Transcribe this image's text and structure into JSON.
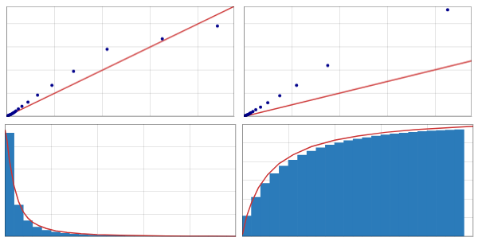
{
  "chart_data": [
    {
      "type": "scatter",
      "series": [
        {
          "type": "line",
          "color": "#cc3333",
          "x": [
            0.0,
            0.95
          ],
          "values": [
            0.0,
            0.95
          ]
        },
        {
          "type": "scatter",
          "color": "#00008B",
          "x": [
            0.0,
            0.002,
            0.004,
            0.006,
            0.008,
            0.01,
            0.012,
            0.015,
            0.018,
            0.022,
            0.026,
            0.03,
            0.035,
            0.04,
            0.05,
            0.065,
            0.09,
            0.13,
            0.19,
            0.28,
            0.42,
            0.65,
            0.88
          ],
          "values": [
            0.0,
            0.002,
            0.004,
            0.006,
            0.008,
            0.01,
            0.012,
            0.015,
            0.018,
            0.022,
            0.027,
            0.033,
            0.04,
            0.048,
            0.065,
            0.088,
            0.125,
            0.185,
            0.27,
            0.39,
            0.58,
            0.67,
            0.78
          ]
        }
      ],
      "xlim": [
        0,
        0.95
      ],
      "ylim": [
        0,
        0.95
      ],
      "xticks": [
        0,
        0.2,
        0.4,
        0.6,
        0.8
      ],
      "yticks": [
        0,
        0.2,
        0.4,
        0.6,
        0.8
      ],
      "grid": true,
      "tick_labels": false
    },
    {
      "type": "scatter",
      "series": [
        {
          "type": "line",
          "color": "#cc3333",
          "x": [
            0.0,
            0.95
          ],
          "values": [
            0.0,
            0.48
          ]
        },
        {
          "type": "scatter",
          "color": "#00008B",
          "x": [
            0.0,
            0.002,
            0.004,
            0.006,
            0.008,
            0.01,
            0.012,
            0.015,
            0.018,
            0.022,
            0.026,
            0.03,
            0.038,
            0.05,
            0.07,
            0.1,
            0.15,
            0.22,
            0.35,
            0.85
          ],
          "values": [
            0.0,
            0.002,
            0.004,
            0.006,
            0.008,
            0.01,
            0.012,
            0.015,
            0.018,
            0.022,
            0.027,
            0.033,
            0.043,
            0.058,
            0.082,
            0.12,
            0.18,
            0.27,
            0.44,
            0.92
          ]
        }
      ],
      "xlim": [
        0,
        0.95
      ],
      "ylim": [
        0,
        0.95
      ],
      "xticks": [
        0,
        0.2,
        0.4,
        0.6,
        0.8
      ],
      "yticks": [
        0,
        0.2,
        0.4,
        0.6,
        0.8
      ],
      "grid": true,
      "tick_labels": false
    },
    {
      "type": "histogram",
      "bins": [
        0.0,
        0.04,
        0.08,
        0.12,
        0.16,
        0.2,
        0.24,
        0.28,
        0.32,
        0.36,
        0.4,
        0.44,
        0.48,
        0.52,
        0.56,
        0.6,
        0.64,
        0.68,
        0.72,
        0.76,
        0.8,
        0.84,
        0.88,
        0.92,
        0.96,
        1.0
      ],
      "values": [
        9.2,
        2.8,
        1.4,
        0.85,
        0.56,
        0.4,
        0.3,
        0.22,
        0.18,
        0.14,
        0.11,
        0.09,
        0.08,
        0.07,
        0.06,
        0.05,
        0.045,
        0.04,
        0.035,
        0.03,
        0.025,
        0.022,
        0.02,
        0.018,
        0.016
      ],
      "color": "#2b7bba",
      "series": [
        {
          "type": "line",
          "color": "#cc3333",
          "x": [
            0.001,
            0.01,
            0.02,
            0.04,
            0.06,
            0.08,
            0.1,
            0.12,
            0.15,
            0.18,
            0.22,
            0.27,
            0.33,
            0.4,
            0.5,
            0.6,
            0.7,
            0.8,
            0.9,
            1.0
          ],
          "values": [
            9.5,
            8.5,
            6.8,
            4.5,
            3.1,
            2.2,
            1.65,
            1.28,
            0.95,
            0.72,
            0.52,
            0.37,
            0.26,
            0.18,
            0.12,
            0.08,
            0.055,
            0.04,
            0.028,
            0.02
          ]
        }
      ],
      "xlim": [
        0,
        1.0
      ],
      "ylim": [
        0,
        10.0
      ],
      "xticks": [
        0,
        0.2,
        0.4,
        0.6,
        0.8,
        1.0
      ],
      "yticks": [
        0,
        2,
        4,
        6,
        8,
        10
      ],
      "grid": true,
      "tick_labels": false
    },
    {
      "type": "histogram",
      "bins": [
        0.0,
        0.04,
        0.08,
        0.12,
        0.16,
        0.2,
        0.24,
        0.28,
        0.32,
        0.36,
        0.4,
        0.44,
        0.48,
        0.52,
        0.56,
        0.6,
        0.64,
        0.68,
        0.72,
        0.76,
        0.8,
        0.84,
        0.88,
        0.92,
        0.96
      ],
      "values": [
        0.55,
        1.05,
        1.42,
        1.68,
        1.88,
        2.04,
        2.17,
        2.28,
        2.37,
        2.44,
        2.5,
        2.56,
        2.6,
        2.64,
        2.68,
        2.71,
        2.74,
        2.76,
        2.78,
        2.8,
        2.82,
        2.83,
        2.84,
        2.85
      ],
      "color": "#2b7bba",
      "series": [
        {
          "type": "line",
          "color": "#cc3333",
          "x": [
            0.001,
            0.01,
            0.02,
            0.04,
            0.07,
            0.11,
            0.16,
            0.22,
            0.3,
            0.4,
            0.5,
            0.62,
            0.75,
            0.88,
            1.0
          ],
          "values": [
            0.05,
            0.3,
            0.55,
            0.9,
            1.3,
            1.65,
            1.95,
            2.18,
            2.4,
            2.57,
            2.68,
            2.78,
            2.85,
            2.9,
            2.94
          ]
        }
      ],
      "xlim": [
        0,
        1.0
      ],
      "ylim": [
        0,
        3.0
      ],
      "xticks": [
        0,
        0.2,
        0.4,
        0.6,
        0.8,
        1.0
      ],
      "yticks": [
        0,
        0.5,
        1.0,
        1.5,
        2.0,
        2.5,
        3.0
      ],
      "grid": true,
      "tick_labels": false
    }
  ]
}
